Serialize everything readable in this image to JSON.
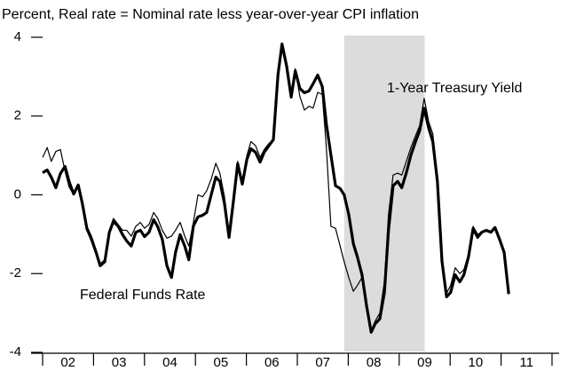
{
  "chart_data": {
    "type": "line",
    "title": "Percent, Real rate = Nominal rate less year-over-year CPI inflation",
    "annotations": [
      "Federal Funds Rate",
      "1-Year Treasury Yield"
    ],
    "shade": [
      2007.92,
      2009.5
    ],
    "x": [
      2002.0,
      2002.09,
      2002.17,
      2002.26,
      2002.35,
      2002.44,
      2002.52,
      2002.61,
      2002.7,
      2002.78,
      2002.87,
      2002.96,
      2003.05,
      2003.13,
      2003.22,
      2003.31,
      2003.39,
      2003.48,
      2003.57,
      2003.65,
      2003.74,
      2003.83,
      2003.92,
      2004.0,
      2004.09,
      2004.18,
      2004.26,
      2004.35,
      2004.44,
      2004.53,
      2004.61,
      2004.7,
      2004.79,
      2004.87,
      2004.96,
      2005.05,
      2005.14,
      2005.22,
      2005.31,
      2005.4,
      2005.48,
      2005.57,
      2005.66,
      2005.74,
      2005.83,
      2005.92,
      2006.01,
      2006.09,
      2006.18,
      2006.27,
      2006.35,
      2006.44,
      2006.53,
      2006.62,
      2006.7,
      2006.79,
      2006.88,
      2006.96,
      2007.05,
      2007.14,
      2007.23,
      2007.31,
      2007.4,
      2007.49,
      2007.57,
      2007.66,
      2007.75,
      2007.84,
      2007.92,
      2008.01,
      2008.1,
      2008.18,
      2008.27,
      2008.36,
      2008.45,
      2008.53,
      2008.62,
      2008.71,
      2008.79,
      2008.88,
      2008.97,
      2009.05,
      2009.14,
      2009.23,
      2009.32,
      2009.4,
      2009.49,
      2009.58,
      2009.66,
      2009.75,
      2009.84,
      2009.93,
      2010.01,
      2010.1,
      2010.19,
      2010.27,
      2010.36,
      2010.45,
      2010.54,
      2010.62,
      2010.71,
      2010.8,
      2010.88,
      2010.97,
      2011.06,
      2011.15
    ],
    "series": [
      {
        "name": "Federal Funds Rate",
        "color": "#000000",
        "values": [
          0.56,
          0.63,
          0.45,
          0.18,
          0.54,
          0.72,
          0.34,
          0.02,
          0.25,
          -0.22,
          -0.86,
          -1.13,
          -1.46,
          -1.8,
          -1.7,
          -0.95,
          -0.68,
          -0.79,
          -1.01,
          -1.17,
          -1.3,
          -0.95,
          -0.9,
          -1.06,
          -0.95,
          -0.63,
          -0.81,
          -1.13,
          -1.8,
          -2.1,
          -1.46,
          -1.01,
          -1.3,
          -1.65,
          -0.79,
          -0.56,
          -0.52,
          -0.45,
          0,
          0.45,
          0.34,
          -0.22,
          -1.08,
          -0.22,
          0.79,
          0.27,
          0.9,
          1.17,
          1.08,
          0.83,
          1.08,
          1.24,
          1.4,
          3.04,
          3.83,
          3.27,
          2.48,
          3.15,
          2.7,
          2.59,
          2.64,
          2.82,
          3.04,
          2.75,
          1.8,
          1.01,
          0.23,
          0.16,
          0,
          -0.5,
          -1.24,
          -1.58,
          -2.03,
          -2.82,
          -3.49,
          -3.27,
          -3.15,
          -2.48,
          -0.9,
          0.23,
          0.34,
          0.18,
          0.56,
          1.01,
          1.35,
          1.62,
          2.2,
          1.69,
          1.35,
          0.34,
          -1.69,
          -2.59,
          -2.48,
          -2.03,
          -2.21,
          -2.03,
          -1.58,
          -0.86,
          -1.08,
          -0.95,
          -0.9,
          -0.95,
          -0.83,
          -1.13,
          -1.46,
          -2.52
        ]
      },
      {
        "name": "1-Year Treasury Yield",
        "color": "#000000",
        "values": [
          0.95,
          1.2,
          0.85,
          1.1,
          1.15,
          0.6,
          0.2,
          0.0,
          0.2,
          -0.25,
          -0.8,
          -1.05,
          -1.4,
          -1.75,
          -1.65,
          -0.9,
          -0.6,
          -0.75,
          -0.9,
          -0.9,
          -1.05,
          -0.8,
          -0.7,
          -0.85,
          -0.75,
          -0.45,
          -0.6,
          -0.9,
          -1.1,
          -1.05,
          -0.9,
          -0.7,
          -1.05,
          -1.3,
          -0.7,
          0.0,
          -0.05,
          0.1,
          0.4,
          0.8,
          0.55,
          -0.05,
          -1.0,
          -0.1,
          0.85,
          0.3,
          1.0,
          1.35,
          1.25,
          0.95,
          1.15,
          1.3,
          1.4,
          3.1,
          3.8,
          3.2,
          2.5,
          3.2,
          2.5,
          2.15,
          2.25,
          2.2,
          2.6,
          2.55,
          1.2,
          -0.8,
          -0.85,
          -1.3,
          -1.7,
          -2.1,
          -2.45,
          -2.3,
          -2.1,
          -2.8,
          -3.45,
          -3.2,
          -3.0,
          -2.2,
          -0.5,
          0.5,
          0.55,
          0.5,
          0.85,
          1.2,
          1.5,
          1.75,
          2.45,
          1.85,
          1.55,
          0.4,
          -1.6,
          -2.5,
          -2.3,
          -1.85,
          -2.0,
          -1.9,
          -1.5,
          -0.8,
          -1.0,
          -0.95,
          -0.9,
          -0.95,
          -0.85,
          -1.1,
          -1.45,
          -2.5
        ]
      }
    ],
    "xlim": [
      2002,
      2012
    ],
    "xticks": [
      {
        "value": 2002.5,
        "label": "02"
      },
      {
        "value": 2003.5,
        "label": "03"
      },
      {
        "value": 2004.5,
        "label": "04"
      },
      {
        "value": 2005.5,
        "label": "05"
      },
      {
        "value": 2006.5,
        "label": "06"
      },
      {
        "value": 2007.5,
        "label": "07"
      },
      {
        "value": 2008.5,
        "label": "08"
      },
      {
        "value": 2009.5,
        "label": "09"
      },
      {
        "value": 2010.5,
        "label": "10"
      },
      {
        "value": 2011.5,
        "label": "11"
      }
    ],
    "ylim": [
      -4,
      4
    ],
    "yticks": [
      -4,
      -2,
      0,
      2,
      4
    ]
  }
}
